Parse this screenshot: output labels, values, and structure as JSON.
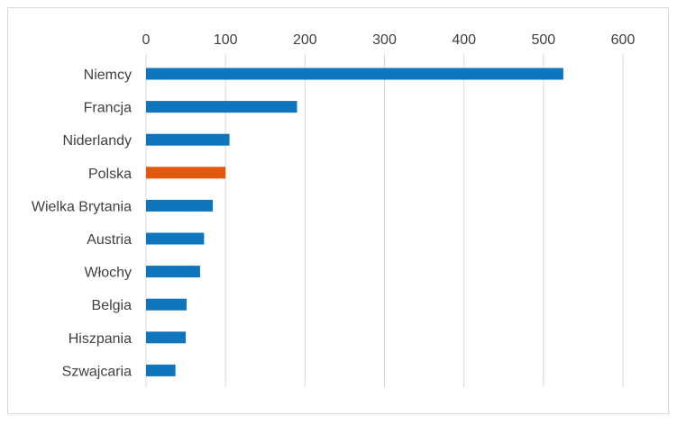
{
  "chart_data": {
    "type": "bar",
    "orientation": "horizontal",
    "categories": [
      "Niemcy",
      "Francja",
      "Niderlandy",
      "Polska",
      "Wielka Brytania",
      "Austria",
      "Włochy",
      "Belgia",
      "Hiszpania",
      "Szwajcaria"
    ],
    "values": [
      525,
      190,
      105,
      100,
      84,
      73,
      68,
      51,
      50,
      37
    ],
    "xlim": [
      0,
      600
    ],
    "xticks": [
      "0",
      "100",
      "200",
      "300",
      "400",
      "500",
      "600"
    ],
    "x_axis_position": "top",
    "grid": true,
    "legend": "none",
    "colors": {
      "default": "#0f75bc",
      "highlight": "#e0590f",
      "highlight_category": "Polska",
      "grid": "#d9d9d9",
      "text": "#404040"
    },
    "title": "",
    "xlabel": "",
    "ylabel": ""
  }
}
